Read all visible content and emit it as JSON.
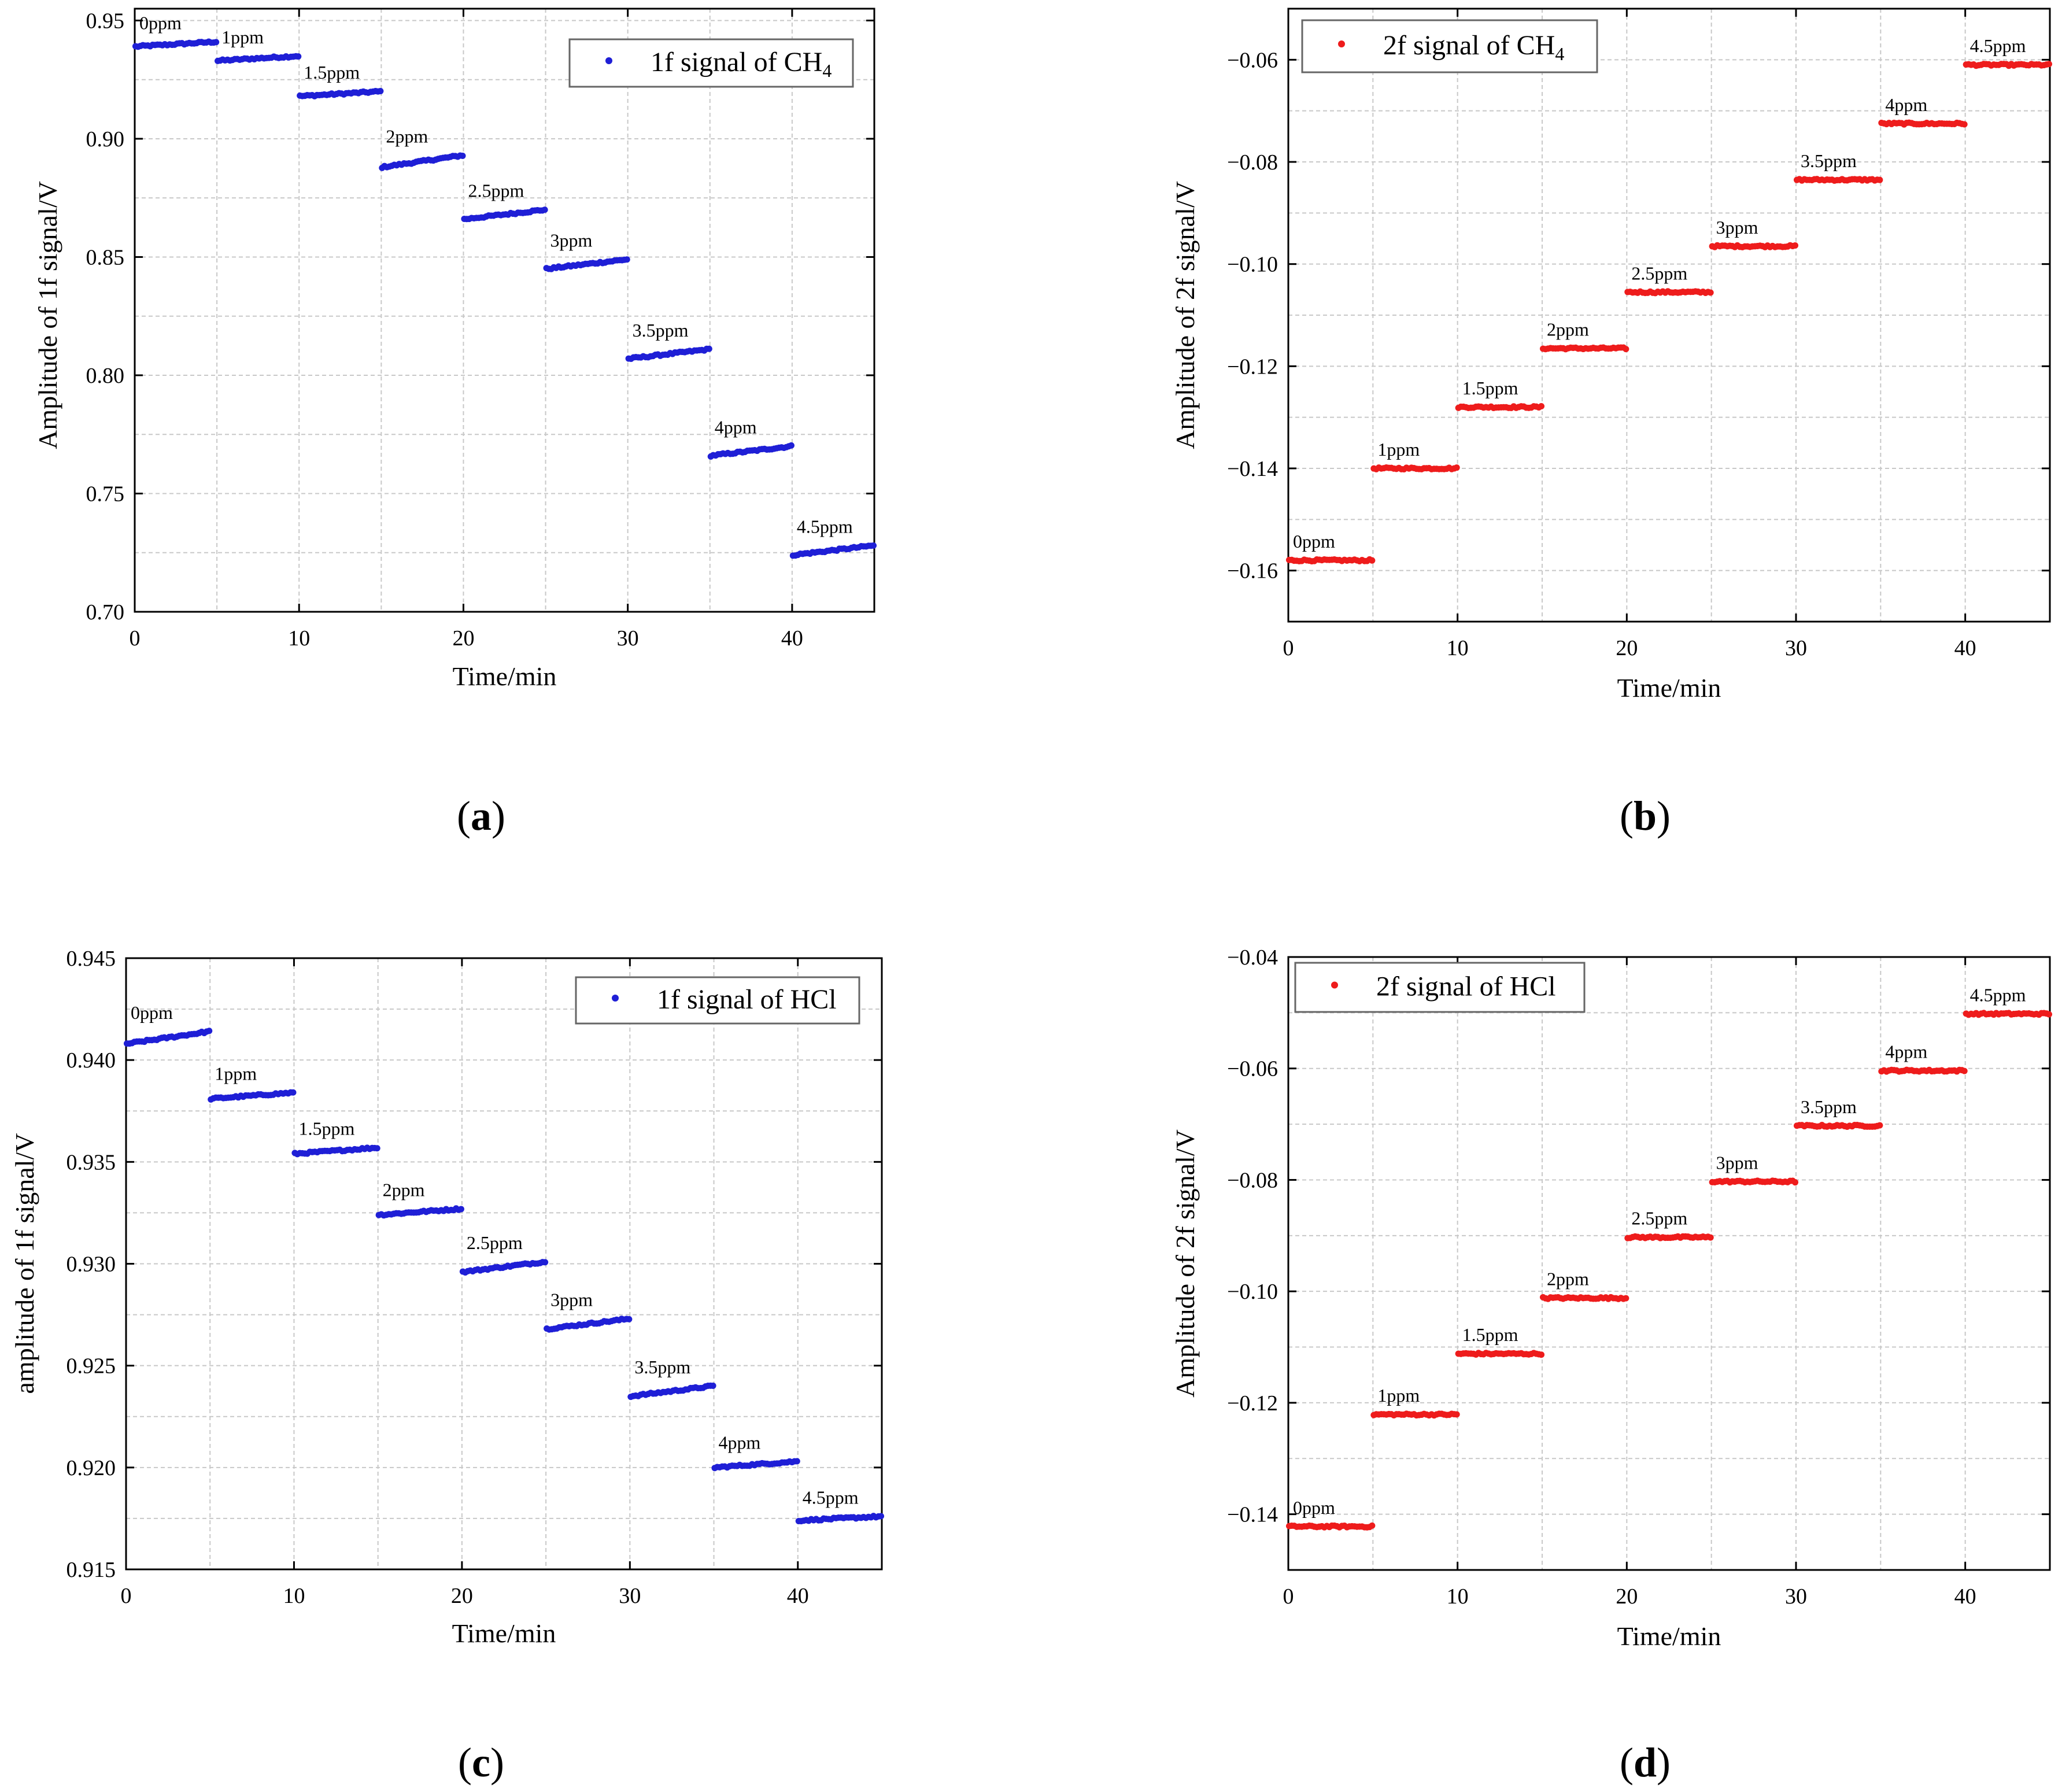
{
  "figure": {
    "captions": [
      {
        "open": "(",
        "letter": "a",
        "close": ")"
      },
      {
        "open": "(",
        "letter": "b",
        "close": ")"
      },
      {
        "open": "(",
        "letter": "c",
        "close": ")"
      },
      {
        "open": "(",
        "letter": "d",
        "close": ")"
      }
    ]
  },
  "colors": {
    "blue": "#1f1fd6",
    "red": "#ee1c1c",
    "grid": "#c8c8c8"
  },
  "chart_data": [
    {
      "type": "scatter",
      "title": "",
      "xlabel": "Time/min",
      "ylabel": "Amplitude of 1f signal/V",
      "xlim": [
        0,
        45
      ],
      "ylim": [
        0.7,
        0.955
      ],
      "xticks": [
        0,
        10,
        20,
        30,
        40
      ],
      "yticks": [
        0.7,
        0.75,
        0.8,
        0.85,
        0.9,
        0.95
      ],
      "ytick_labels": [
        "0.70",
        "0.75",
        "0.80",
        "0.85",
        "0.90",
        "0.95"
      ],
      "grid": true,
      "legend": {
        "position": "top-right",
        "text": "1f signal of CH",
        "subscript": "4"
      },
      "series": [
        {
          "name": "1f signal of CH4",
          "color": "#1f1fd6",
          "segments": [
            {
              "label": "0ppm",
              "x_start": 0,
              "x_end": 5,
              "y_start": 0.939,
              "y_end": 0.941
            },
            {
              "label": "1ppm",
              "x_start": 5,
              "x_end": 10,
              "y_start": 0.933,
              "y_end": 0.935
            },
            {
              "label": "1.5ppm",
              "x_start": 10,
              "x_end": 15,
              "y_start": 0.918,
              "y_end": 0.92
            },
            {
              "label": "2ppm",
              "x_start": 15,
              "x_end": 20,
              "y_start": 0.888,
              "y_end": 0.893
            },
            {
              "label": "2.5ppm",
              "x_start": 20,
              "x_end": 25,
              "y_start": 0.866,
              "y_end": 0.87
            },
            {
              "label": "3ppm",
              "x_start": 25,
              "x_end": 30,
              "y_start": 0.845,
              "y_end": 0.849
            },
            {
              "label": "3.5ppm",
              "x_start": 30,
              "x_end": 35,
              "y_start": 0.807,
              "y_end": 0.811
            },
            {
              "label": "4ppm",
              "x_start": 35,
              "x_end": 40,
              "y_start": 0.766,
              "y_end": 0.77
            },
            {
              "label": "4.5ppm",
              "x_start": 40,
              "x_end": 45,
              "y_start": 0.724,
              "y_end": 0.728
            }
          ]
        }
      ]
    },
    {
      "type": "scatter",
      "title": "",
      "xlabel": "Time/min",
      "ylabel": "Amplitude of 2f signal/V",
      "xlim": [
        0,
        45
      ],
      "ylim": [
        -0.17,
        -0.05
      ],
      "xticks": [
        0,
        10,
        20,
        30,
        40
      ],
      "yticks": [
        -0.16,
        -0.14,
        -0.12,
        -0.1,
        -0.08,
        -0.06
      ],
      "ytick_labels": [
        "−0.16",
        "−0.14",
        "−0.12",
        "−0.10",
        "−0.08",
        "−0.06"
      ],
      "grid": true,
      "legend": {
        "position": "top-left",
        "text": "2f signal of CH",
        "subscript": "4"
      },
      "series": [
        {
          "name": "2f signal of CH4",
          "color": "#ee1c1c",
          "segments": [
            {
              "label": "0ppm",
              "x_start": 0,
              "x_end": 5,
              "y_start": -0.158,
              "y_end": -0.158
            },
            {
              "label": "1ppm",
              "x_start": 5,
              "x_end": 10,
              "y_start": -0.14,
              "y_end": -0.14
            },
            {
              "label": "1.5ppm",
              "x_start": 10,
              "x_end": 15,
              "y_start": -0.128,
              "y_end": -0.128
            },
            {
              "label": "2ppm",
              "x_start": 15,
              "x_end": 20,
              "y_start": -0.1165,
              "y_end": -0.1165
            },
            {
              "label": "2.5ppm",
              "x_start": 20,
              "x_end": 25,
              "y_start": -0.1055,
              "y_end": -0.1055
            },
            {
              "label": "3ppm",
              "x_start": 25,
              "x_end": 30,
              "y_start": -0.0965,
              "y_end": -0.0965
            },
            {
              "label": "3.5ppm",
              "x_start": 30,
              "x_end": 35,
              "y_start": -0.0835,
              "y_end": -0.0835
            },
            {
              "label": "4ppm",
              "x_start": 35,
              "x_end": 40,
              "y_start": -0.0725,
              "y_end": -0.0725
            },
            {
              "label": "4.5ppm",
              "x_start": 40,
              "x_end": 45,
              "y_start": -0.061,
              "y_end": -0.061
            }
          ]
        }
      ]
    },
    {
      "type": "scatter",
      "title": "",
      "xlabel": "Time/min",
      "ylabel": "amplitude of 1f signal/V",
      "xlim": [
        0,
        45
      ],
      "ylim": [
        0.915,
        0.945
      ],
      "xticks": [
        0,
        10,
        20,
        30,
        40
      ],
      "yticks": [
        0.915,
        0.92,
        0.925,
        0.93,
        0.935,
        0.94,
        0.945
      ],
      "ytick_labels": [
        "0.915",
        "0.920",
        "0.925",
        "0.930",
        "0.935",
        "0.940",
        "0.945"
      ],
      "grid": true,
      "legend": {
        "position": "top-right",
        "text": "1f signal of HCl",
        "subscript": ""
      },
      "series": [
        {
          "name": "1f signal of HCl",
          "color": "#1f1fd6",
          "segments": [
            {
              "label": "0ppm",
              "x_start": 0,
              "x_end": 5,
              "y_start": 0.9408,
              "y_end": 0.9414
            },
            {
              "label": "1ppm",
              "x_start": 5,
              "x_end": 10,
              "y_start": 0.9381,
              "y_end": 0.9384
            },
            {
              "label": "1.5ppm",
              "x_start": 10,
              "x_end": 15,
              "y_start": 0.9354,
              "y_end": 0.9357
            },
            {
              "label": "2ppm",
              "x_start": 15,
              "x_end": 20,
              "y_start": 0.9324,
              "y_end": 0.9327
            },
            {
              "label": "2.5ppm",
              "x_start": 20,
              "x_end": 25,
              "y_start": 0.9296,
              "y_end": 0.9301
            },
            {
              "label": "3ppm",
              "x_start": 25,
              "x_end": 30,
              "y_start": 0.9268,
              "y_end": 0.9273
            },
            {
              "label": "3.5ppm",
              "x_start": 30,
              "x_end": 35,
              "y_start": 0.9235,
              "y_end": 0.924
            },
            {
              "label": "4ppm",
              "x_start": 35,
              "x_end": 40,
              "y_start": 0.92,
              "y_end": 0.9203
            },
            {
              "label": "4.5ppm",
              "x_start": 40,
              "x_end": 45,
              "y_start": 0.9174,
              "y_end": 0.9176
            }
          ]
        }
      ]
    },
    {
      "type": "scatter",
      "title": "",
      "xlabel": "Time/min",
      "ylabel": "Amplitude of 2f signal/V",
      "xlim": [
        0,
        45
      ],
      "ylim": [
        -0.15,
        -0.04
      ],
      "xticks": [
        0,
        10,
        20,
        30,
        40
      ],
      "yticks": [
        -0.14,
        -0.12,
        -0.1,
        -0.08,
        -0.06,
        -0.04
      ],
      "ytick_labels": [
        "−0.14",
        "−0.12",
        "−0.10",
        "−0.08",
        "−0.06",
        "−0.04"
      ],
      "grid": true,
      "legend": {
        "position": "top-left",
        "text": "2f signal of HCl",
        "subscript": ""
      },
      "series": [
        {
          "name": "2f signal of HCl",
          "color": "#ee1c1c",
          "segments": [
            {
              "label": "0ppm",
              "x_start": 0,
              "x_end": 5,
              "y_start": -0.1422,
              "y_end": -0.1422
            },
            {
              "label": "1ppm",
              "x_start": 5,
              "x_end": 10,
              "y_start": -0.1221,
              "y_end": -0.1221
            },
            {
              "label": "1.5ppm",
              "x_start": 10,
              "x_end": 15,
              "y_start": -0.1112,
              "y_end": -0.1112
            },
            {
              "label": "2ppm",
              "x_start": 15,
              "x_end": 20,
              "y_start": -0.1012,
              "y_end": -0.1012
            },
            {
              "label": "2.5ppm",
              "x_start": 20,
              "x_end": 25,
              "y_start": -0.0903,
              "y_end": -0.0903
            },
            {
              "label": "3ppm",
              "x_start": 25,
              "x_end": 30,
              "y_start": -0.0803,
              "y_end": -0.0803
            },
            {
              "label": "3.5ppm",
              "x_start": 30,
              "x_end": 35,
              "y_start": -0.0703,
              "y_end": -0.0703
            },
            {
              "label": "4ppm",
              "x_start": 35,
              "x_end": 40,
              "y_start": -0.0604,
              "y_end": -0.0604
            },
            {
              "label": "4.5ppm",
              "x_start": 40,
              "x_end": 45,
              "y_start": -0.0502,
              "y_end": -0.0502
            }
          ]
        }
      ]
    }
  ]
}
